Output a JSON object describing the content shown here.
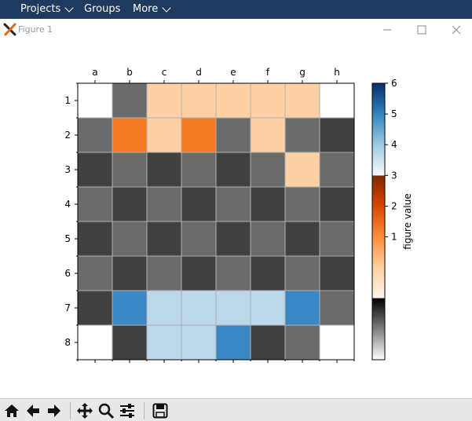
{
  "topbar": {
    "menu": [
      {
        "label": "Projects",
        "has_dropdown": true
      },
      {
        "label": "Groups",
        "has_dropdown": false
      },
      {
        "label": "More",
        "has_dropdown": true
      }
    ]
  },
  "window": {
    "title": "Figure 1",
    "icon": "matplotlib-x-icon",
    "controls": [
      "minimize-icon",
      "maximize-icon",
      "close-icon"
    ]
  },
  "chart_data": {
    "type": "heatmap",
    "columns": [
      "a",
      "b",
      "c",
      "d",
      "e",
      "f",
      "g",
      "h"
    ],
    "rows": [
      "1",
      "2",
      "3",
      "4",
      "5",
      "6",
      "7",
      "8"
    ],
    "values": [
      [
        0,
        -1,
        2,
        2,
        2,
        2,
        2,
        0
      ],
      [
        -1,
        1,
        2,
        1,
        -1,
        2,
        -1,
        -2
      ],
      [
        -2,
        -1,
        -2,
        -1,
        -2,
        -1,
        2,
        -1
      ],
      [
        -1,
        -2,
        -1,
        -2,
        -1,
        -2,
        -1,
        -2
      ],
      [
        -2,
        -1,
        -2,
        -1,
        -2,
        -1,
        -2,
        -1
      ],
      [
        -1,
        -2,
        -1,
        -2,
        -1,
        -2,
        -1,
        -2
      ],
      [
        -2,
        5,
        4,
        4,
        4,
        4,
        5,
        -1
      ],
      [
        0,
        -2,
        4,
        4,
        5,
        -2,
        -1,
        0
      ]
    ],
    "cell_colors": {
      "0": "#ffffff",
      "-1": "#6b6b6b",
      "-2": "#404040",
      "1": "#f47a25",
      "2": "#fdd0a6",
      "4": "#bdd7eb",
      "5": "#3a87c4"
    },
    "colorbar": {
      "label": "figure value",
      "ticks": [
        1,
        2,
        3,
        4,
        5,
        6
      ],
      "range": [
        -3,
        6
      ]
    }
  },
  "toolbar": {
    "buttons": [
      "home-icon",
      "back-icon",
      "forward-icon",
      "pan-icon",
      "zoom-icon",
      "configure-subplots-icon",
      "save-icon"
    ]
  }
}
